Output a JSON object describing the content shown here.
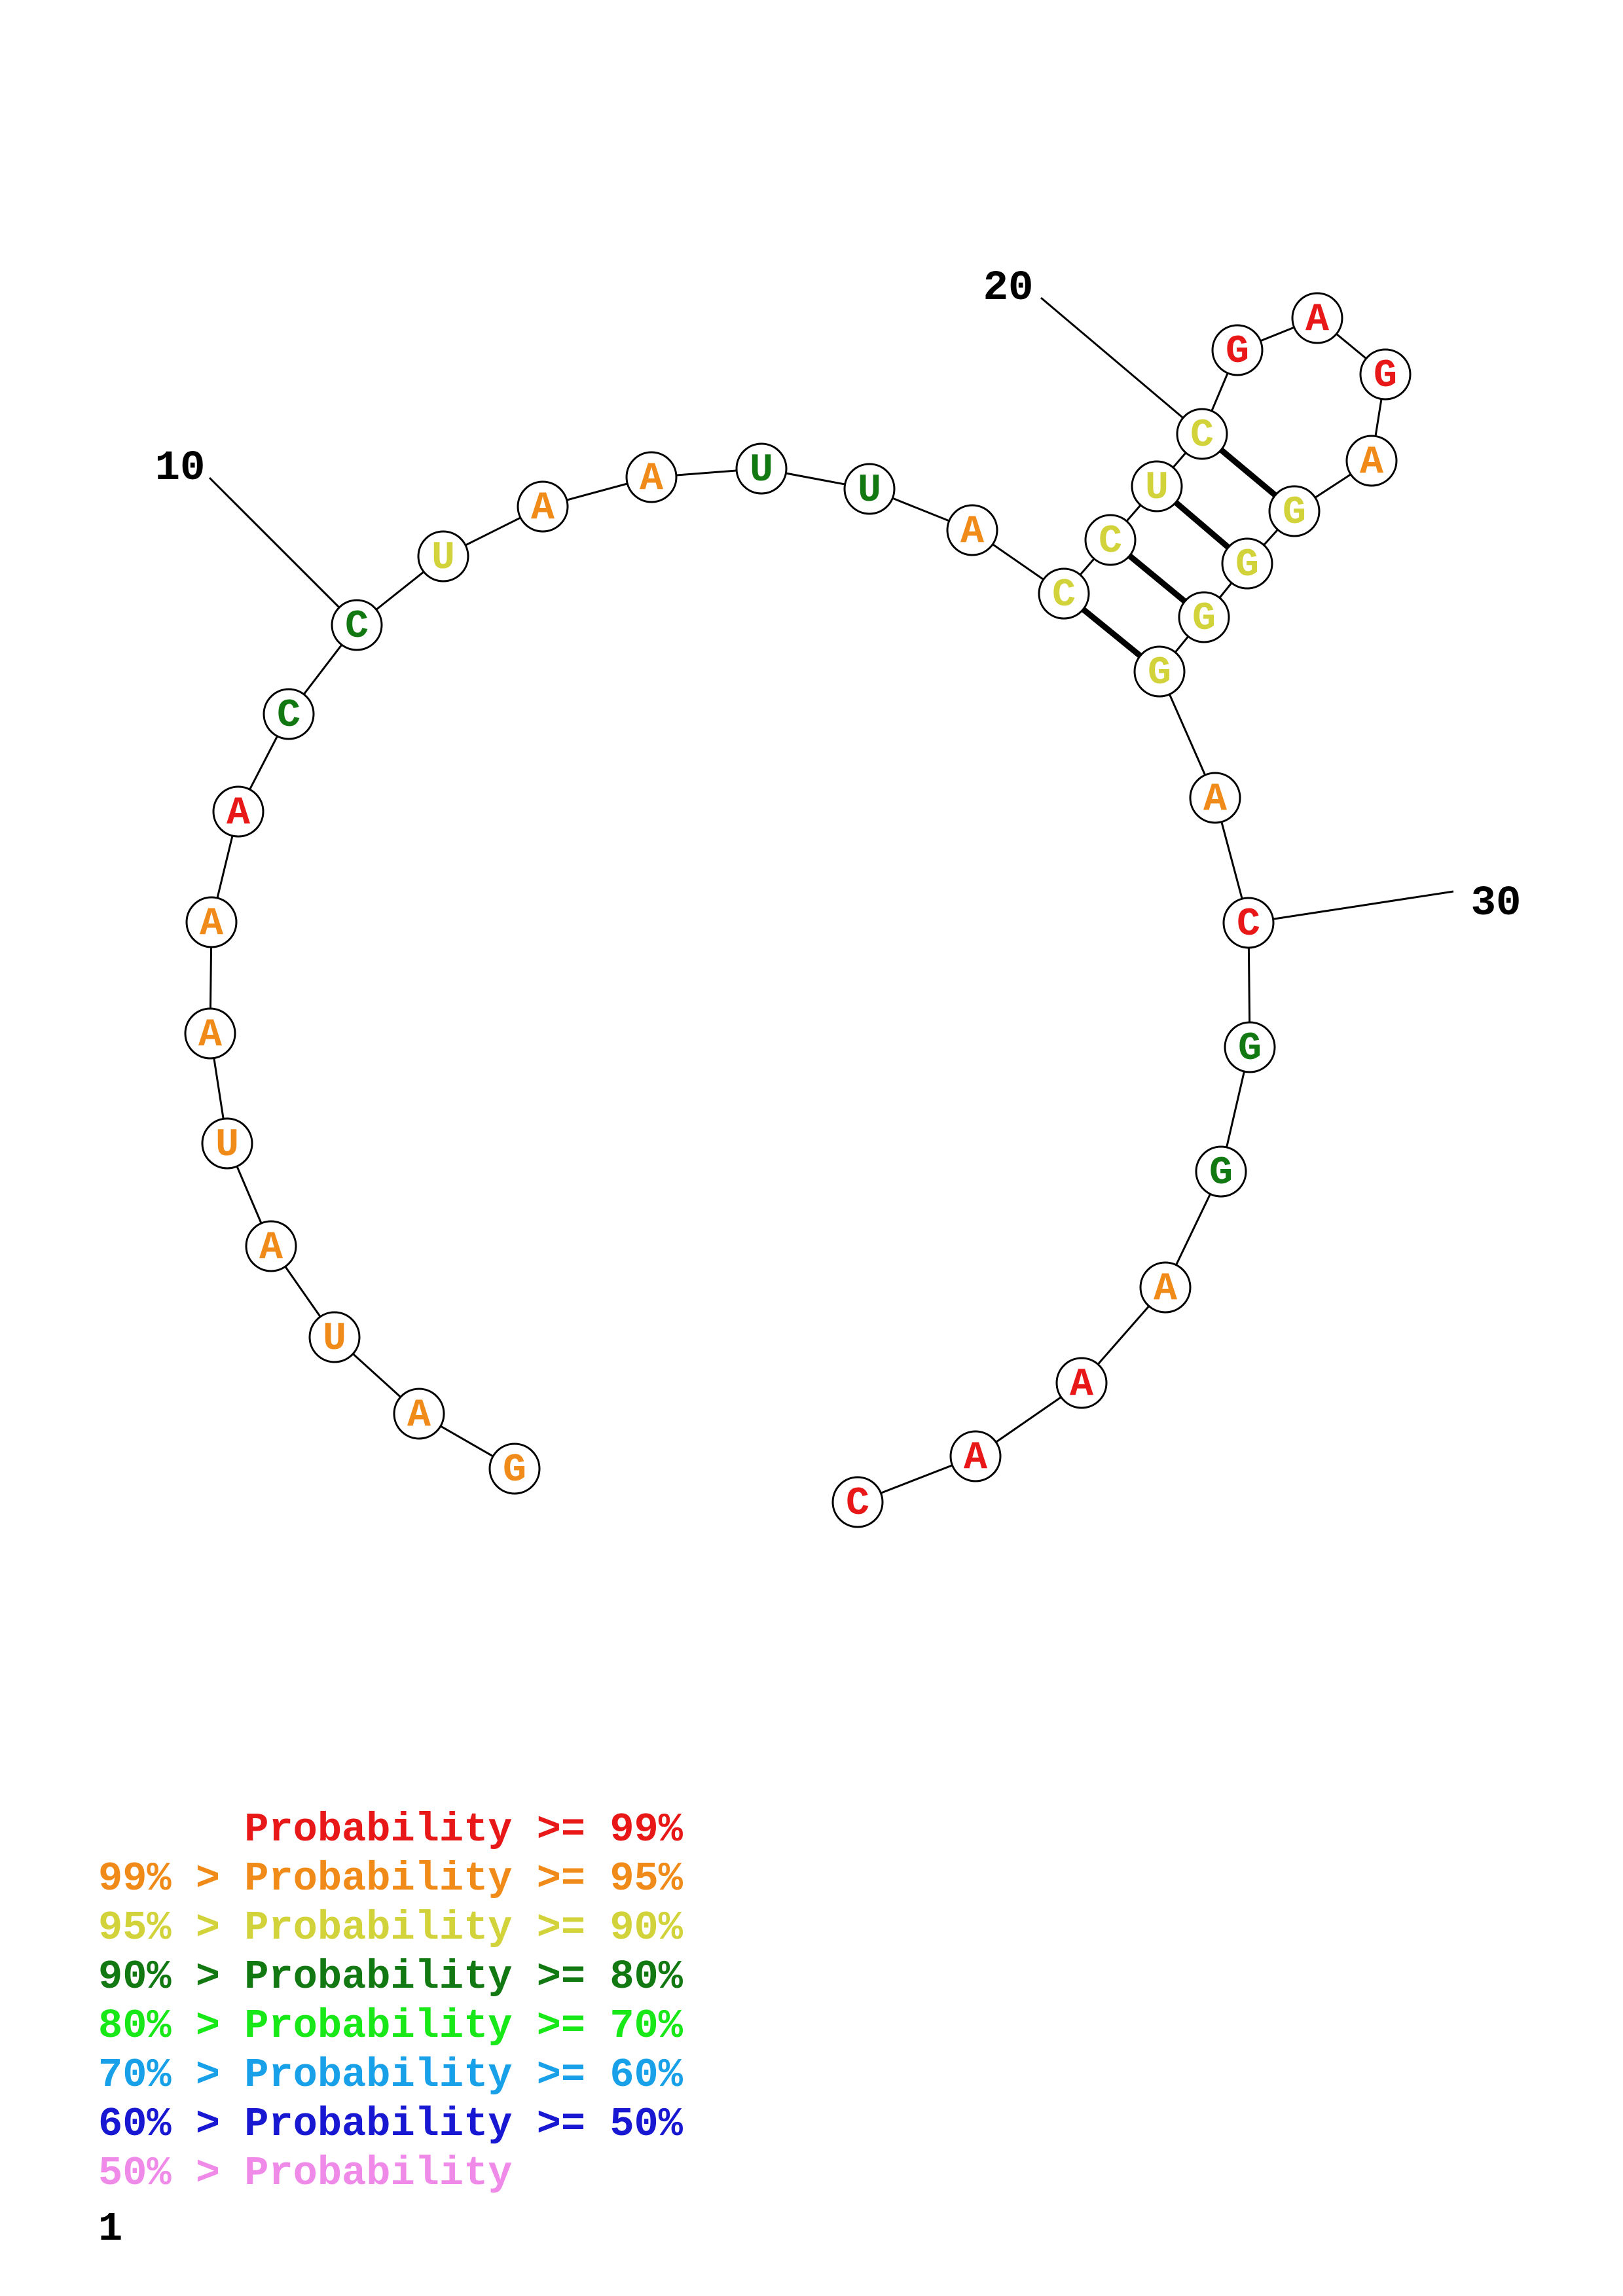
{
  "structure": {
    "sequence": [
      "G",
      "A",
      "U",
      "A",
      "U",
      "A",
      "A",
      "A",
      "C",
      "C",
      "U",
      "A",
      "A",
      "U",
      "U",
      "A",
      "C",
      "C",
      "U",
      "C",
      "G",
      "A",
      "G",
      "A",
      "G",
      "G",
      "G",
      "G",
      "A",
      "C",
      "G",
      "G",
      "A",
      "A",
      "A",
      "C"
    ],
    "reading_order": "3' end at bottom left, numbered toward 5' end at bottom right",
    "nucleotides": [
      {
        "base": "G",
        "color": "#f08a18"
      },
      {
        "base": "A",
        "color": "#f08a18"
      },
      {
        "base": "U",
        "color": "#f08a18"
      },
      {
        "base": "A",
        "color": "#f08a18"
      },
      {
        "base": "U",
        "color": "#f08a18"
      },
      {
        "base": "A",
        "color": "#f08a18"
      },
      {
        "base": "A",
        "color": "#f08a18"
      },
      {
        "base": "A",
        "color": "#e81818"
      },
      {
        "base": "C",
        "color": "#127812"
      },
      {
        "base": "C",
        "color": "#127812"
      },
      {
        "base": "U",
        "color": "#d2d23a"
      },
      {
        "base": "A",
        "color": "#f08a18"
      },
      {
        "base": "A",
        "color": "#f08a18"
      },
      {
        "base": "U",
        "color": "#127812"
      },
      {
        "base": "U",
        "color": "#127812"
      },
      {
        "base": "A",
        "color": "#f08a18"
      },
      {
        "base": "C",
        "color": "#d2d23a"
      },
      {
        "base": "C",
        "color": "#d2d23a"
      },
      {
        "base": "U",
        "color": "#d2d23a"
      },
      {
        "base": "C",
        "color": "#d2d23a"
      },
      {
        "base": "G",
        "color": "#e81818"
      },
      {
        "base": "A",
        "color": "#e81818"
      },
      {
        "base": "G",
        "color": "#e81818"
      },
      {
        "base": "A",
        "color": "#f08a18"
      },
      {
        "base": "G",
        "color": "#d2d23a"
      },
      {
        "base": "G",
        "color": "#d2d23a"
      },
      {
        "base": "G",
        "color": "#d2d23a"
      },
      {
        "base": "G",
        "color": "#d2d23a"
      },
      {
        "base": "A",
        "color": "#f08a18"
      },
      {
        "base": "C",
        "color": "#e81818"
      },
      {
        "base": "G",
        "color": "#127812"
      },
      {
        "base": "G",
        "color": "#127812"
      },
      {
        "base": "A",
        "color": "#f08a18"
      },
      {
        "base": "A",
        "color": "#e81818"
      },
      {
        "base": "A",
        "color": "#e81818"
      },
      {
        "base": "C",
        "color": "#e81818"
      }
    ],
    "base_pairs": [
      [
        17,
        28
      ],
      [
        18,
        27
      ],
      [
        19,
        26
      ],
      [
        20,
        25
      ]
    ],
    "position_labels": [
      {
        "text": "10",
        "index": 10
      },
      {
        "text": "20",
        "index": 20
      },
      {
        "text": "30",
        "index": 30
      }
    ]
  },
  "legend": [
    {
      "prefix": "     ",
      "text": "Probability >= 99%",
      "color": "#e81818"
    },
    {
      "prefix": "",
      "text": "99% > Probability >= 95%",
      "color": "#f08a18"
    },
    {
      "prefix": "",
      "text": "95% > Probability >= 90%",
      "color": "#d2d23a"
    },
    {
      "prefix": "",
      "text": "90% > Probability >= 80%",
      "color": "#127812"
    },
    {
      "prefix": "",
      "text": "80% > Probability >= 70%",
      "color": "#18e818"
    },
    {
      "prefix": "",
      "text": "70% > Probability >= 60%",
      "color": "#18a0e8"
    },
    {
      "prefix": "",
      "text": "60% > Probability >= 50%",
      "color": "#1818d2"
    },
    {
      "prefix": "",
      "text": "50% > Probability",
      "color": "#f08ae8"
    }
  ],
  "page_number": "1"
}
